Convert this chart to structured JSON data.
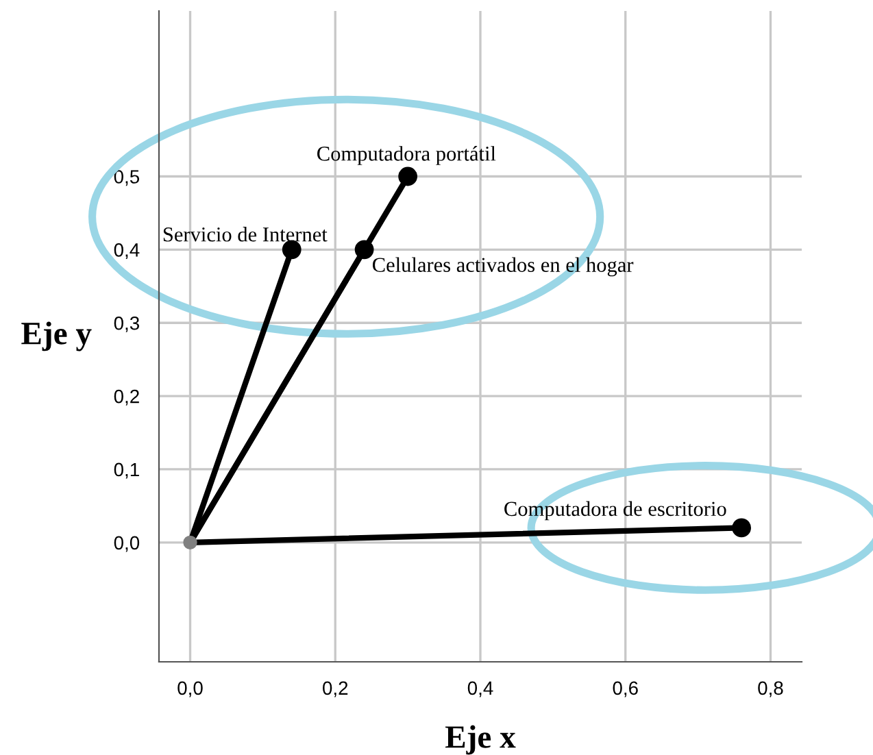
{
  "chart_data": {
    "type": "line",
    "xlabel": "Eje x",
    "ylabel": "Eje y",
    "xlim": [
      -0.043,
      0.843
    ],
    "ylim": [
      -0.163,
      0.726
    ],
    "xticks": [
      {
        "value": 0,
        "label": "0,0"
      },
      {
        "value": 0.2,
        "label": "0,2"
      },
      {
        "value": 0.4,
        "label": "0,4"
      },
      {
        "value": 0.6,
        "label": "0,6"
      },
      {
        "value": 0.8,
        "label": "0,8"
      }
    ],
    "yticks": [
      {
        "value": 0,
        "label": "0,0"
      },
      {
        "value": 0.1,
        "label": "0,1"
      },
      {
        "value": 0.2,
        "label": "0,2"
      },
      {
        "value": 0.3,
        "label": "0,3"
      },
      {
        "value": 0.4,
        "label": "0,4"
      },
      {
        "value": 0.5,
        "label": "0,5"
      }
    ],
    "grid": true,
    "marker": "circle",
    "line_style": "solid",
    "series": [
      {
        "name": "Computadora portátil",
        "color": "#000000",
        "x": [
          0,
          0.3
        ],
        "values": [
          0,
          0.5
        ]
      },
      {
        "name": "Servicio de Internet",
        "color": "#000000",
        "x": [
          0,
          0.14
        ],
        "values": [
          0,
          0.4
        ]
      },
      {
        "name": "Celulares activados en el hogar",
        "color": "#000000",
        "x": [
          0,
          0.24
        ],
        "values": [
          0,
          0.4
        ]
      },
      {
        "name": "Computadora de escritorio",
        "color": "#000000",
        "x": [
          0,
          0.76
        ],
        "values": [
          0,
          0.02
        ]
      },
      {
        "type": "scatter",
        "color": "#808080",
        "x": [
          0
        ],
        "values": [
          0
        ]
      }
    ]
  }
}
